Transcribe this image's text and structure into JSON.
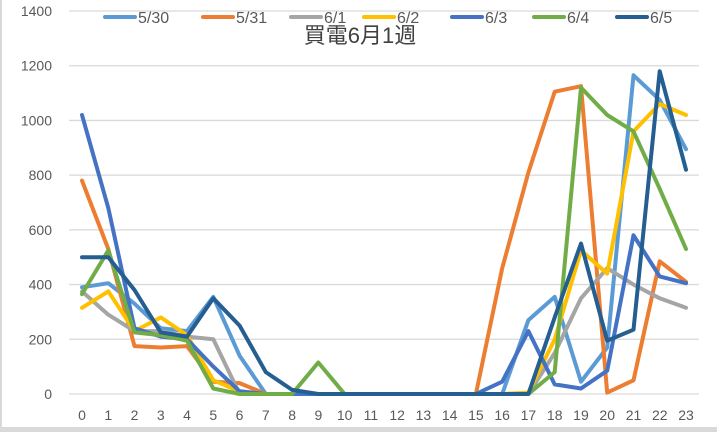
{
  "chart_data": {
    "type": "line",
    "title": "買電6月1週",
    "xlabel": "",
    "ylabel": "",
    "x": [
      0,
      1,
      2,
      3,
      4,
      5,
      6,
      7,
      8,
      9,
      10,
      11,
      12,
      13,
      14,
      15,
      16,
      17,
      18,
      19,
      20,
      21,
      22,
      23
    ],
    "ylim": [
      0,
      1400
    ],
    "yticks": [
      0,
      200,
      400,
      600,
      800,
      1000,
      1200,
      1400
    ],
    "grid": true,
    "legend_position": "top",
    "series": [
      {
        "name": "5/30",
        "color": "#5b9bd5",
        "values": [
          390,
          405,
          330,
          240,
          230,
          355,
          140,
          0,
          0,
          0,
          0,
          0,
          0,
          0,
          0,
          0,
          0,
          270,
          355,
          45,
          170,
          1165,
          1075,
          895
        ]
      },
      {
        "name": "5/31",
        "color": "#ed7d31",
        "values": [
          780,
          530,
          175,
          170,
          175,
          45,
          40,
          0,
          0,
          0,
          0,
          0,
          0,
          0,
          0,
          0,
          460,
          810,
          1105,
          1125,
          5,
          50,
          485,
          410
        ]
      },
      {
        "name": "6/1",
        "color": "#a5a5a5",
        "values": [
          375,
          290,
          230,
          230,
          210,
          200,
          0,
          0,
          0,
          0,
          0,
          0,
          0,
          0,
          0,
          0,
          0,
          0,
          150,
          350,
          460,
          400,
          350,
          315
        ]
      },
      {
        "name": "6/2",
        "color": "#ffc000",
        "values": [
          315,
          375,
          230,
          280,
          215,
          50,
          10,
          0,
          0,
          0,
          0,
          0,
          0,
          0,
          0,
          0,
          0,
          5,
          200,
          525,
          440,
          960,
          1060,
          1020
        ]
      },
      {
        "name": "6/3",
        "color": "#4472c4",
        "values": [
          1020,
          680,
          240,
          210,
          200,
          100,
          10,
          0,
          0,
          0,
          0,
          0,
          0,
          0,
          0,
          0,
          45,
          230,
          35,
          20,
          85,
          580,
          430,
          405
        ]
      },
      {
        "name": "6/4",
        "color": "#70ad47",
        "values": [
          365,
          525,
          225,
          215,
          195,
          20,
          0,
          0,
          0,
          115,
          0,
          0,
          0,
          0,
          0,
          0,
          0,
          0,
          80,
          1120,
          1020,
          960,
          750,
          530
        ]
      },
      {
        "name": "6/5",
        "color": "#255e91",
        "values": [
          500,
          500,
          380,
          225,
          210,
          350,
          250,
          80,
          15,
          0,
          0,
          0,
          0,
          0,
          0,
          0,
          0,
          0,
          280,
          550,
          195,
          235,
          1180,
          820
        ]
      }
    ]
  }
}
